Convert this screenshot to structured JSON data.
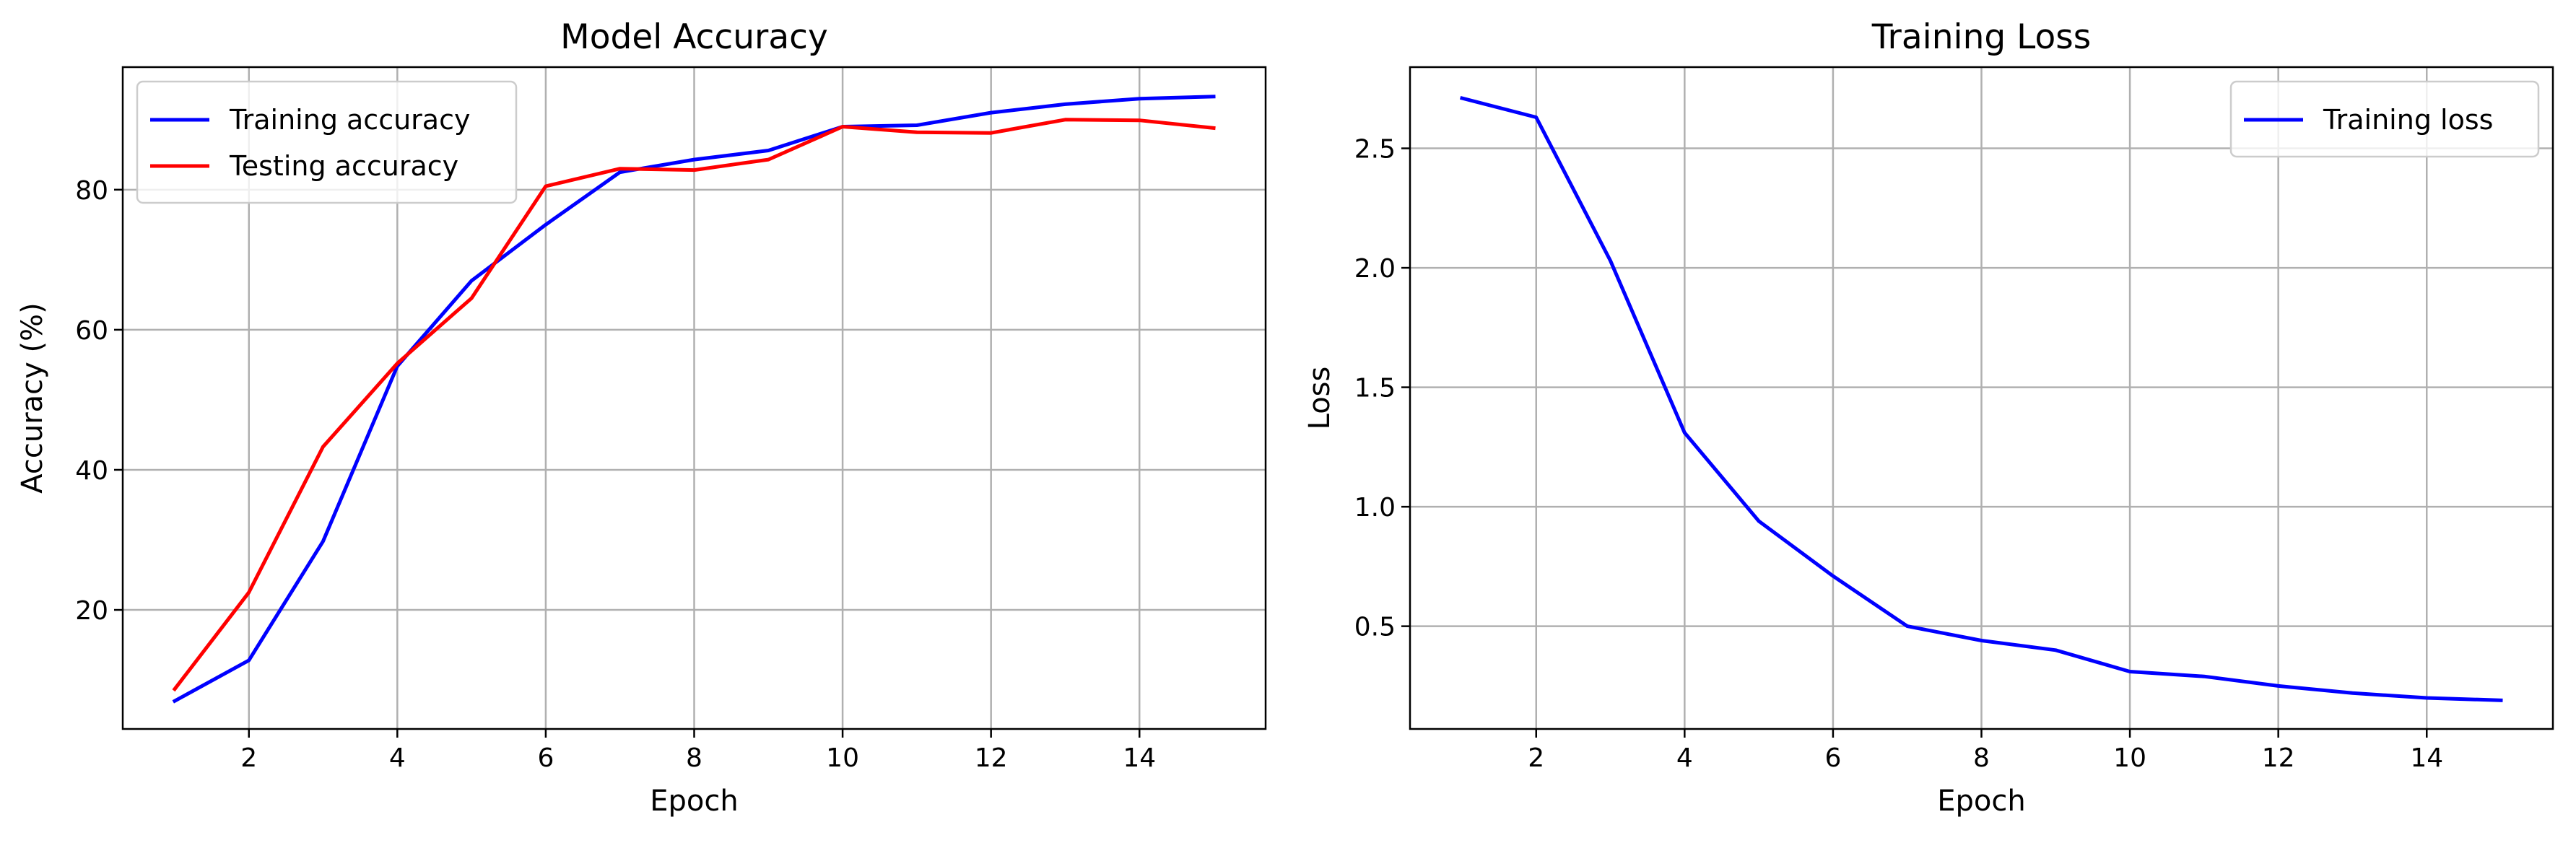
{
  "chart_data": [
    {
      "type": "line",
      "title": "Model Accuracy",
      "xlabel": "Epoch",
      "ylabel": "Accuracy (%)",
      "xlim": [
        0.3,
        15.7
      ],
      "ylim": [
        3,
        97.5
      ],
      "xticks": [
        2,
        4,
        6,
        8,
        10,
        12,
        14
      ],
      "yticks": [
        20,
        40,
        60,
        80
      ],
      "grid": true,
      "legend_position": "upper-left",
      "x": [
        1,
        2,
        3,
        4,
        5,
        6,
        7,
        8,
        9,
        10,
        11,
        12,
        13,
        14,
        15
      ],
      "series": [
        {
          "name": "Training accuracy",
          "color": "#0000ff",
          "values": [
            7.0,
            12.8,
            29.8,
            54.8,
            67.0,
            75.0,
            82.5,
            84.3,
            85.6,
            89.0,
            89.2,
            91.0,
            92.2,
            93.0,
            93.3
          ]
        },
        {
          "name": "Testing accuracy",
          "color": "#ff0000",
          "values": [
            8.7,
            22.5,
            43.3,
            55.2,
            64.5,
            80.5,
            83.0,
            82.8,
            84.3,
            89.0,
            88.2,
            88.1,
            90.0,
            89.9,
            88.8
          ]
        }
      ]
    },
    {
      "type": "line",
      "title": "Training Loss",
      "xlabel": "Epoch",
      "ylabel": "Loss",
      "xlim": [
        0.3,
        15.7
      ],
      "ylim": [
        0.07,
        2.84
      ],
      "xticks": [
        2,
        4,
        6,
        8,
        10,
        12,
        14
      ],
      "yticks": [
        0.5,
        1.0,
        1.5,
        2.0,
        2.5
      ],
      "grid": true,
      "legend_position": "upper-right",
      "x": [
        1,
        2,
        3,
        4,
        5,
        6,
        7,
        8,
        9,
        10,
        11,
        12,
        13,
        14,
        15
      ],
      "series": [
        {
          "name": "Training loss",
          "color": "#0000ff",
          "values": [
            2.71,
            2.63,
            2.03,
            1.31,
            0.94,
            0.71,
            0.5,
            0.44,
            0.4,
            0.31,
            0.29,
            0.25,
            0.22,
            0.2,
            0.19
          ]
        }
      ]
    }
  ]
}
